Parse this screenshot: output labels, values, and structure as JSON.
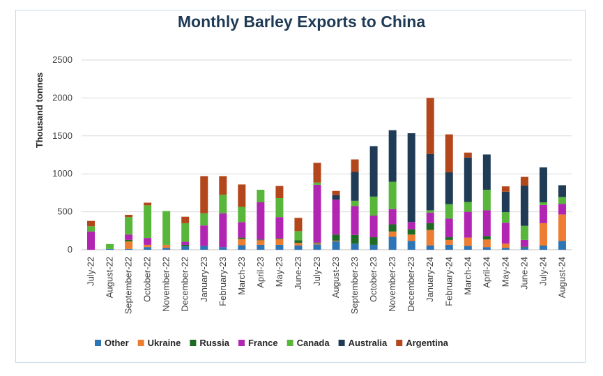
{
  "chart_data": {
    "type": "bar",
    "stacked": true,
    "title": "Monthly Barley Exports to China",
    "ylabel": "Thousand tonnes",
    "xlabel": "",
    "ylim": [
      0,
      2500
    ],
    "yticks": [
      0,
      500,
      1000,
      1500,
      2000,
      2500
    ],
    "grid": true,
    "legend_position": "bottom",
    "categories": [
      "July-22",
      "August-22",
      "September-22",
      "October-22",
      "November-22",
      "December-22",
      "January-23",
      "February-23",
      "March-23",
      "April-23",
      "May-23",
      "June-23",
      "July-23",
      "August-23",
      "September-23",
      "October-23",
      "November-23",
      "December-23",
      "January-24",
      "February-24",
      "March-24",
      "April-24",
      "May-24",
      "June-24",
      "July-24",
      "August-24"
    ],
    "series": [
      {
        "name": "Other",
        "color": "#2e75b6",
        "values": [
          0,
          10,
          10,
          35,
          25,
          45,
          50,
          35,
          60,
          65,
          65,
          55,
          70,
          110,
          80,
          65,
          170,
          115,
          55,
          65,
          50,
          35,
          25,
          30,
          55,
          115
        ]
      },
      {
        "name": "Ukraine",
        "color": "#ed7d31",
        "values": [
          0,
          0,
          100,
          30,
          40,
          0,
          0,
          0,
          80,
          60,
          75,
          35,
          15,
          10,
          0,
          0,
          70,
          85,
          205,
          65,
          110,
          100,
          55,
          0,
          295,
          350
        ]
      },
      {
        "name": "Russia",
        "color": "#1e6b24",
        "values": [
          0,
          0,
          20,
          0,
          0,
          20,
          0,
          0,
          20,
          10,
          10,
          35,
          10,
          80,
          115,
          100,
          95,
          70,
          90,
          35,
          0,
          45,
          0,
          10,
          0,
          0
        ]
      },
      {
        "name": "France",
        "color": "#b125b2",
        "values": [
          240,
          0,
          70,
          90,
          0,
          40,
          270,
          445,
          205,
          490,
          280,
          0,
          760,
          460,
          380,
          285,
          200,
          95,
          140,
          245,
          340,
          340,
          275,
          90,
          240,
          140
        ]
      },
      {
        "name": "Canada",
        "color": "#58b63a",
        "values": [
          70,
          65,
          230,
          430,
          445,
          245,
          160,
          245,
          200,
          165,
          250,
          120,
          30,
          0,
          70,
          250,
          360,
          0,
          30,
          190,
          130,
          270,
          140,
          185,
          35,
          90
        ]
      },
      {
        "name": "Australia",
        "color": "#1f3b55",
        "values": [
          0,
          0,
          0,
          0,
          0,
          0,
          0,
          0,
          0,
          0,
          0,
          0,
          0,
          60,
          380,
          665,
          680,
          1170,
          740,
          420,
          585,
          465,
          270,
          530,
          460,
          155
        ]
      },
      {
        "name": "Argentina",
        "color": "#b3461b",
        "values": [
          70,
          0,
          30,
          35,
          0,
          85,
          490,
          245,
          295,
          0,
          160,
          175,
          260,
          55,
          165,
          0,
          0,
          0,
          740,
          500,
          65,
          0,
          70,
          115,
          0,
          0
        ]
      }
    ]
  }
}
